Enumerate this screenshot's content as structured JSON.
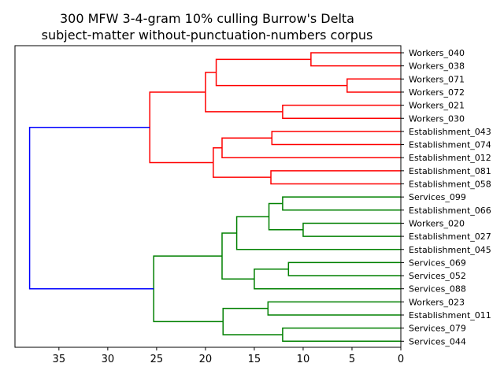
{
  "chart_data": {
    "type": "dendrogram",
    "title_lines": [
      "300 MFW 3-4-gram 10% culling Burrow's Delta",
      "subject-matter without-punctuation-numbers corpus"
    ],
    "xlim": [
      39.5,
      0
    ],
    "x_ticks": [
      35,
      30,
      25,
      20,
      15,
      10,
      5,
      0
    ],
    "grid": false,
    "orientation": "left",
    "leaves": [
      "Workers_040",
      "Workers_038",
      "Workers_071",
      "Workers_072",
      "Workers_021",
      "Workers_030",
      "Establishment_043",
      "Establishment_074",
      "Establishment_012",
      "Establishment_081",
      "Establishment_058",
      "Services_099",
      "Establishment_066",
      "Workers_020",
      "Establishment_027",
      "Establishment_045",
      "Services_069",
      "Services_052",
      "Services_088",
      "Workers_023",
      "Establishment_011",
      "Services_079",
      "Services_044"
    ],
    "colors": {
      "cluster_red": "#ff0000",
      "cluster_green": "#008000",
      "root_blue": "#0000ff"
    },
    "merges": [
      {
        "id": "A",
        "children": [
          "L0",
          "L1"
        ],
        "height": 9.2,
        "color": "red"
      },
      {
        "id": "B",
        "children": [
          "L2",
          "L3"
        ],
        "height": 5.5,
        "color": "red"
      },
      {
        "id": "C",
        "children": [
          "A",
          "B"
        ],
        "height": 18.9,
        "color": "red"
      },
      {
        "id": "D",
        "children": [
          "L4",
          "L5"
        ],
        "height": 12.1,
        "color": "red"
      },
      {
        "id": "E",
        "children": [
          "C",
          "D"
        ],
        "height": 20.0,
        "color": "red"
      },
      {
        "id": "F",
        "children": [
          "L6",
          "L7"
        ],
        "height": 13.2,
        "color": "red"
      },
      {
        "id": "G",
        "children": [
          "F",
          "L8"
        ],
        "height": 18.3,
        "color": "red"
      },
      {
        "id": "H",
        "children": [
          "L9",
          "L10"
        ],
        "height": 13.3,
        "color": "red"
      },
      {
        "id": "I",
        "children": [
          "G",
          "H"
        ],
        "height": 19.2,
        "color": "red"
      },
      {
        "id": "J",
        "children": [
          "E",
          "I"
        ],
        "height": 25.7,
        "color": "red"
      },
      {
        "id": "K",
        "children": [
          "L11",
          "L12"
        ],
        "height": 12.1,
        "color": "green"
      },
      {
        "id": "M",
        "children": [
          "L13",
          "L14"
        ],
        "height": 10.0,
        "color": "green"
      },
      {
        "id": "N",
        "children": [
          "K",
          "M"
        ],
        "height": 13.5,
        "color": "green"
      },
      {
        "id": "O",
        "children": [
          "N",
          "L15"
        ],
        "height": 16.8,
        "color": "green"
      },
      {
        "id": "P",
        "children": [
          "L16",
          "L17"
        ],
        "height": 11.5,
        "color": "green"
      },
      {
        "id": "Q",
        "children": [
          "P",
          "L18"
        ],
        "height": 15.0,
        "color": "green"
      },
      {
        "id": "R",
        "children": [
          "O",
          "Q"
        ],
        "height": 18.3,
        "color": "green"
      },
      {
        "id": "S",
        "children": [
          "L19",
          "L20"
        ],
        "height": 13.6,
        "color": "green"
      },
      {
        "id": "T",
        "children": [
          "L21",
          "L22"
        ],
        "height": 12.1,
        "color": "green"
      },
      {
        "id": "U",
        "children": [
          "S",
          "T"
        ],
        "height": 18.2,
        "color": "green"
      },
      {
        "id": "V",
        "children": [
          "R",
          "U"
        ],
        "height": 25.3,
        "color": "green"
      },
      {
        "id": "W",
        "children": [
          "J",
          "V"
        ],
        "height": 38.0,
        "color": "blue"
      }
    ]
  }
}
